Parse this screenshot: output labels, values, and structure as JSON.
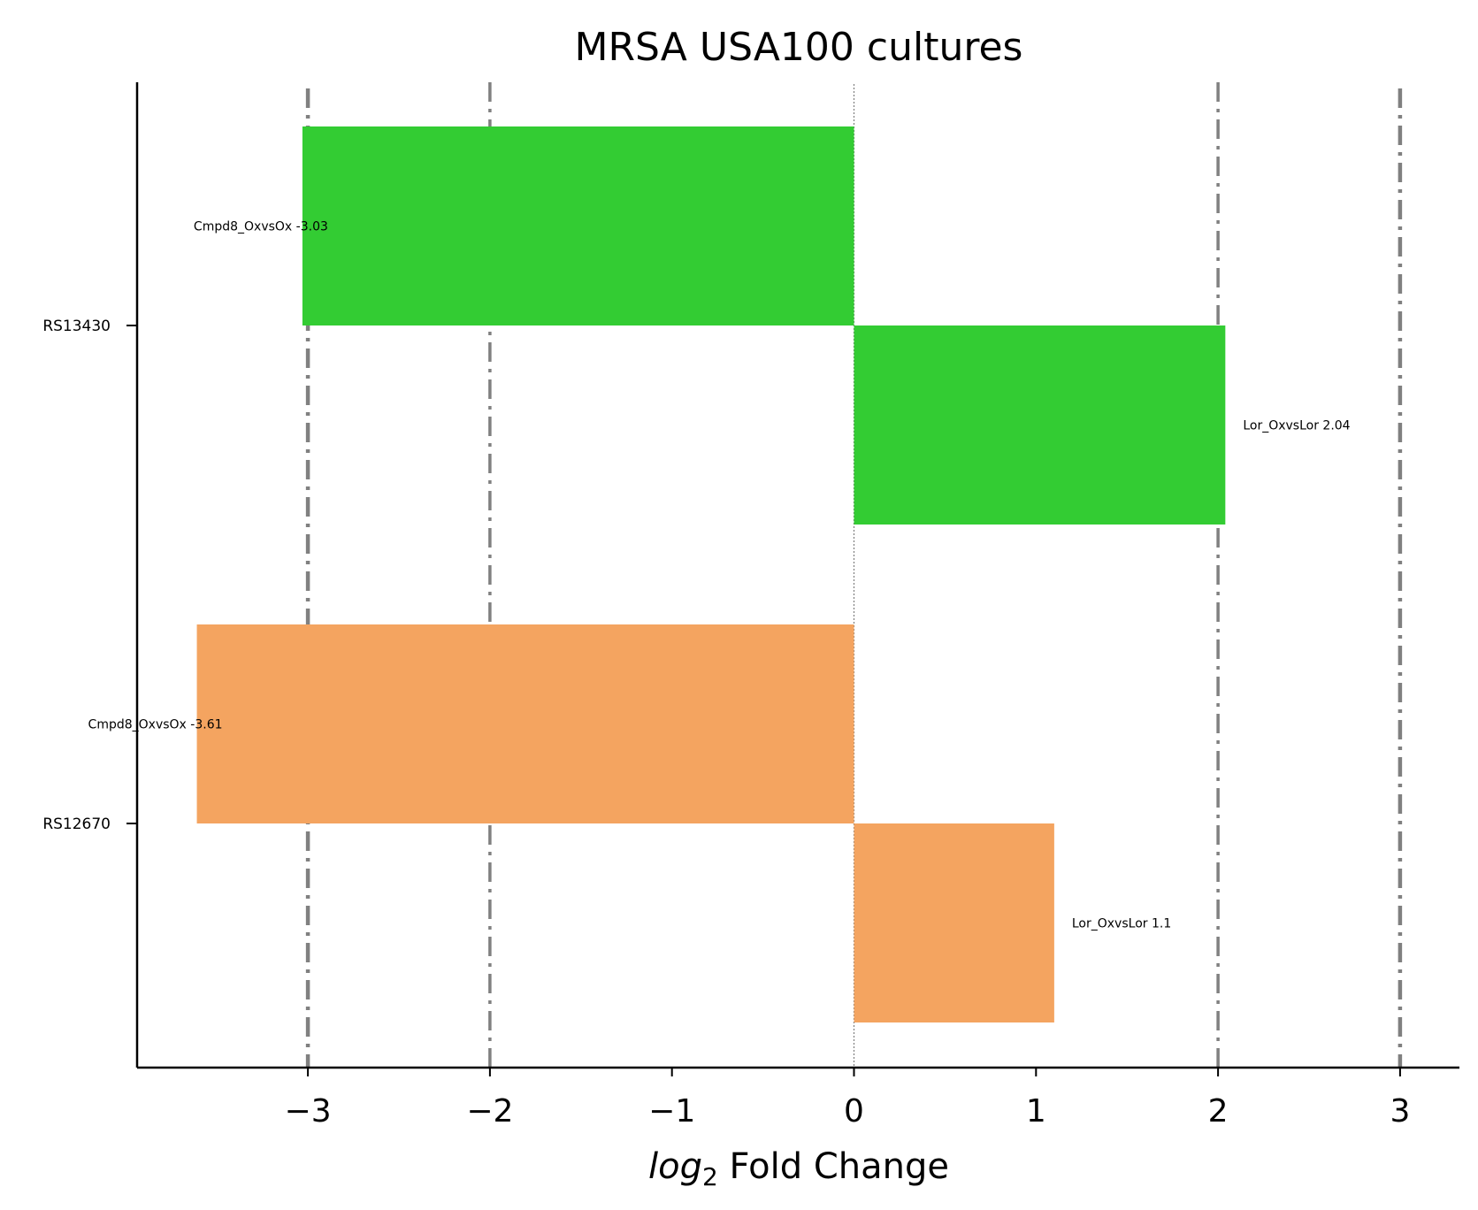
{
  "chart_data": {
    "type": "bar",
    "orientation": "horizontal",
    "title": "MRSA USA100 cultures",
    "xlabel_italic": "log",
    "xlabel_sub": "2",
    "xlabel_rest": " Fold Change",
    "ylabel": "",
    "xlim": [
      -3.95,
      3.35
    ],
    "x_ticks": [
      -3,
      -2,
      -1,
      0,
      1,
      2,
      3
    ],
    "x_tick_labels": [
      "−3",
      "−2",
      "−1",
      "0",
      "1",
      "2",
      "3"
    ],
    "reference_lines": [
      -3,
      -2,
      2,
      3
    ],
    "zero_line": 0,
    "categories": [
      {
        "name": "RS13430",
        "color": "#33cc33",
        "bars": [
          {
            "label": "Cmpd8_OxvsOx -3.03",
            "value": -3.03
          },
          {
            "label": "Lor_OxvsLor 2.04",
            "value": 2.04
          }
        ]
      },
      {
        "name": "RS12670",
        "color": "#f4a460",
        "bars": [
          {
            "label": "Cmpd8_OxvsOx -3.61",
            "value": -3.61
          },
          {
            "label": "Lor_OxvsLor 1.1",
            "value": 1.1
          }
        ]
      }
    ],
    "grid": false,
    "legend": "none"
  }
}
